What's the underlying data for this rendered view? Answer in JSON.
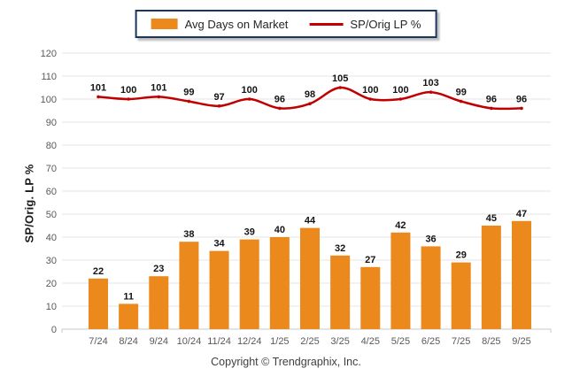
{
  "legend": {
    "items": [
      {
        "label": "Avg Days on Market",
        "swatch": "bar",
        "color": "#EC891D"
      },
      {
        "label": "SP/Orig LP %",
        "swatch": "line",
        "color": "#C00000"
      }
    ]
  },
  "y_axis_title": "SP/Orig. LP %",
  "footer": {
    "copyright": "Copyright © Trendgraphix, Inc."
  },
  "chart_data": {
    "type": "combo-bar-line",
    "categories": [
      "7/24",
      "8/24",
      "9/24",
      "10/24",
      "11/24",
      "12/24",
      "1/25",
      "2/25",
      "3/25",
      "4/25",
      "5/25",
      "6/25",
      "7/25",
      "8/25",
      "9/25"
    ],
    "series": [
      {
        "name": "Avg Days on Market",
        "type": "bar",
        "color": "#EC891D",
        "values": [
          22,
          11,
          23,
          38,
          34,
          39,
          40,
          44,
          32,
          27,
          42,
          36,
          29,
          45,
          47
        ]
      },
      {
        "name": "SP/Orig LP %",
        "type": "line",
        "color": "#C00000",
        "values": [
          101,
          100,
          101,
          99,
          97,
          100,
          96,
          98,
          105,
          100,
          100,
          103,
          99,
          96,
          96
        ]
      }
    ],
    "title": "",
    "xlabel": "",
    "ylabel": "SP/Orig. LP %",
    "ylim": [
      0,
      120
    ],
    "ytick_step": 10,
    "grid": true,
    "legend_position": "top-center",
    "data_labels": true,
    "gridline_color": "#E6E6E6",
    "axis_line_color": "#C9C9C9"
  }
}
